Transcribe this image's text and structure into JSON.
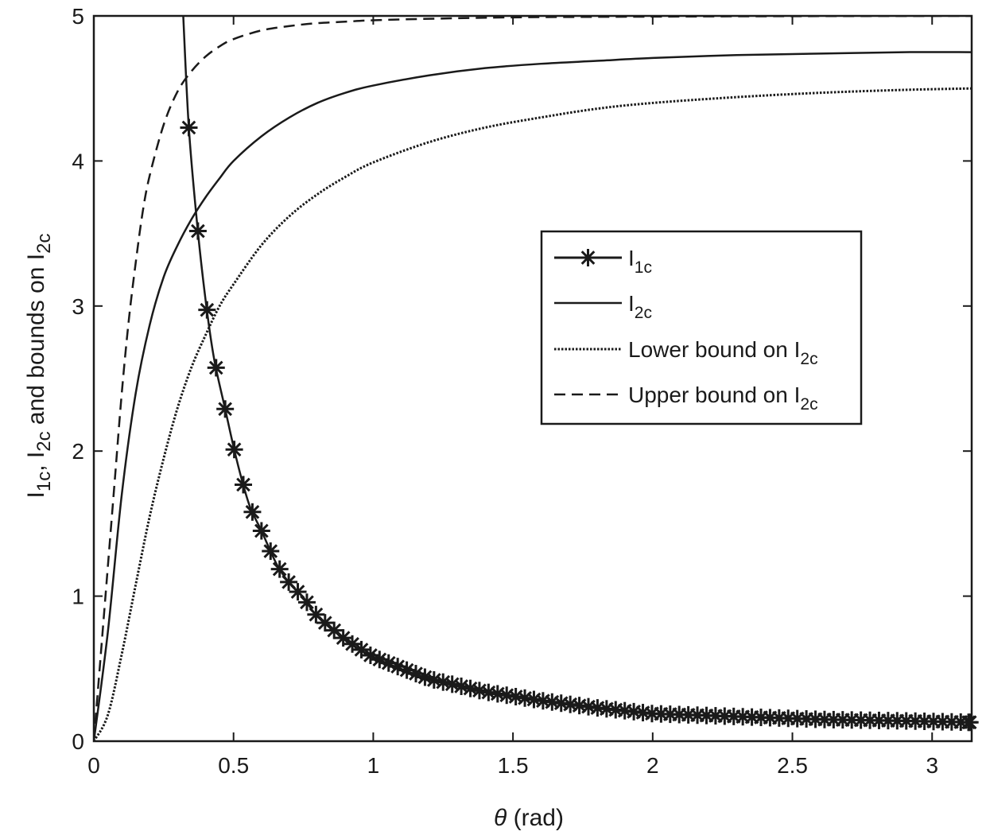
{
  "chart_data": {
    "type": "line",
    "xlabel_symbol": "θ",
    "xlabel_unit": "(rad)",
    "ylabel": {
      "part1": "I",
      "sub1": "1c",
      "sep": ", ",
      "part2": "I",
      "sub2": "2c",
      "part3": " and bounds on I",
      "sub3": "2c"
    },
    "xlim": [
      0,
      3.1416
    ],
    "ylim": [
      0,
      5
    ],
    "xticks": [
      0,
      0.5,
      1,
      1.5,
      2,
      2.5,
      3
    ],
    "xtick_labels": [
      "0",
      "0.5",
      "1",
      "1.5",
      "2",
      "2.5",
      "3"
    ],
    "yticks": [
      0,
      1,
      2,
      3,
      4,
      5
    ],
    "ytick_labels": [
      "0",
      "1",
      "2",
      "3",
      "4",
      "5"
    ],
    "grid": false,
    "legend_position": "right, middle",
    "series": [
      {
        "name": "I1c",
        "label_main": "I",
        "label_sub": "1c",
        "style": "solid",
        "marker": "asterisk",
        "x": [
          0.32,
          0.34,
          0.37,
          0.4,
          0.43,
          0.47,
          0.5,
          0.53,
          0.56,
          0.6,
          0.63,
          0.66,
          0.7,
          0.75,
          0.8,
          0.9,
          1.0,
          1.2,
          1.4,
          1.6,
          1.8,
          2.0,
          2.3,
          2.6,
          2.9,
          3.14
        ],
        "y": [
          5.0,
          4.23,
          3.56,
          3.04,
          2.64,
          2.29,
          2.03,
          1.8,
          1.61,
          1.45,
          1.32,
          1.2,
          1.09,
          0.99,
          0.86,
          0.7,
          0.58,
          0.43,
          0.34,
          0.28,
          0.23,
          0.19,
          0.17,
          0.15,
          0.14,
          0.13
        ]
      },
      {
        "name": "I2c",
        "label_main": "I",
        "label_sub": "2c",
        "style": "solid",
        "x": [
          0,
          0.05,
          0.1,
          0.15,
          0.2,
          0.25,
          0.3,
          0.35,
          0.4,
          0.45,
          0.5,
          0.6,
          0.7,
          0.8,
          0.9,
          1.0,
          1.2,
          1.4,
          1.6,
          1.8,
          2.0,
          2.3,
          2.6,
          2.9,
          3.14
        ],
        "y": [
          0,
          0.75,
          1.7,
          2.4,
          2.87,
          3.2,
          3.42,
          3.6,
          3.75,
          3.88,
          4.0,
          4.17,
          4.3,
          4.4,
          4.47,
          4.52,
          4.59,
          4.64,
          4.67,
          4.69,
          4.71,
          4.73,
          4.74,
          4.75,
          4.75
        ]
      },
      {
        "name": "Lower bound on I2c",
        "label_main": "Lower bound on I",
        "label_sub": "2c",
        "style": "dotted",
        "x": [
          0,
          0.05,
          0.1,
          0.15,
          0.2,
          0.25,
          0.3,
          0.35,
          0.4,
          0.45,
          0.5,
          0.6,
          0.7,
          0.8,
          0.9,
          1.0,
          1.2,
          1.4,
          1.6,
          1.8,
          2.0,
          2.3,
          2.6,
          2.9,
          3.14
        ],
        "y": [
          0,
          0.18,
          0.6,
          1.08,
          1.55,
          1.95,
          2.3,
          2.58,
          2.8,
          3.0,
          3.15,
          3.42,
          3.62,
          3.77,
          3.89,
          3.99,
          4.13,
          4.23,
          4.3,
          4.36,
          4.4,
          4.44,
          4.47,
          4.49,
          4.5
        ]
      },
      {
        "name": "Upper bound on I2c",
        "label_main": "Upper bound on I",
        "label_sub": "2c",
        "style": "dashed",
        "x": [
          0,
          0.025,
          0.05,
          0.075,
          0.1,
          0.125,
          0.15,
          0.175,
          0.2,
          0.25,
          0.3,
          0.35,
          0.4,
          0.45,
          0.5,
          0.6,
          0.7,
          0.8,
          0.9,
          1.0,
          1.2,
          1.5,
          2.0,
          2.5,
          3.14
        ],
        "y": [
          0,
          0.6,
          1.2,
          1.8,
          2.4,
          2.9,
          3.3,
          3.65,
          3.9,
          4.25,
          4.48,
          4.62,
          4.72,
          4.79,
          4.84,
          4.9,
          4.93,
          4.95,
          4.96,
          4.97,
          4.98,
          4.99,
          4.995,
          4.998,
          5.0
        ]
      }
    ]
  }
}
